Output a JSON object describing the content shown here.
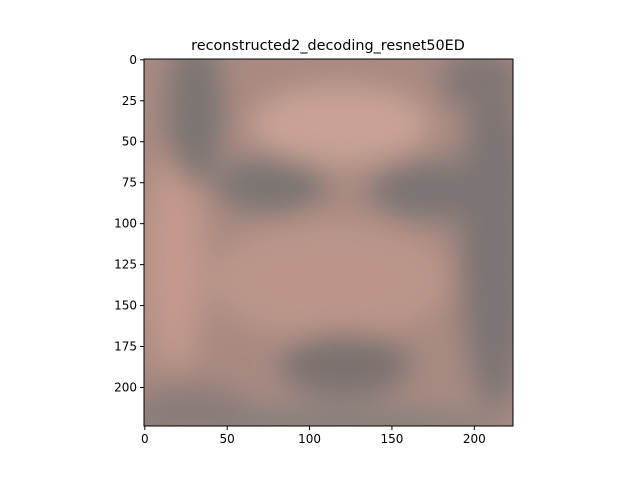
{
  "chart_data": {
    "type": "image",
    "title": "reconstructed2_decoding_resnet50ED",
    "xlim": [
      -0.5,
      223.5
    ],
    "ylim": [
      223.5,
      -0.5
    ],
    "xticks": [
      0,
      50,
      100,
      150,
      200
    ],
    "yticks": [
      0,
      25,
      50,
      75,
      100,
      125,
      150,
      175,
      200
    ]
  }
}
